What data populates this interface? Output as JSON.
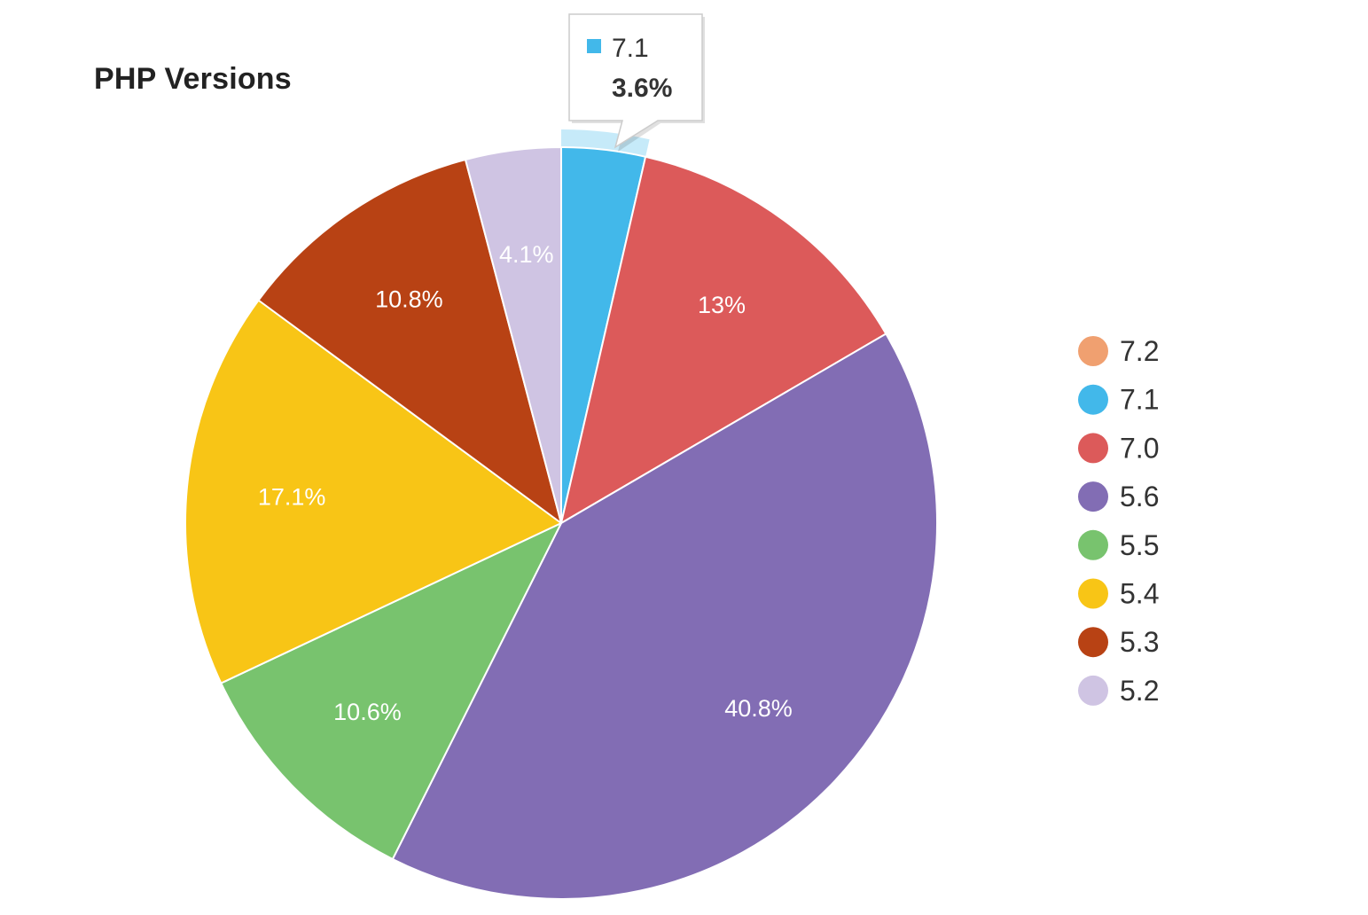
{
  "chart_data": {
    "type": "pie",
    "title": "PHP Versions",
    "series": [
      {
        "name": "7.2",
        "value": 0,
        "label": "",
        "color": "#f0a070"
      },
      {
        "name": "7.1",
        "value": 3.6,
        "label": "",
        "color": "#42b8ea"
      },
      {
        "name": "7.0",
        "value": 13,
        "label": "13%",
        "color": "#dc5a5a"
      },
      {
        "name": "5.6",
        "value": 40.8,
        "label": "40.8%",
        "color": "#826db4"
      },
      {
        "name": "5.5",
        "value": 10.6,
        "label": "10.6%",
        "color": "#78c36e"
      },
      {
        "name": "5.4",
        "value": 17.1,
        "label": "17.1%",
        "color": "#f8c516"
      },
      {
        "name": "5.3",
        "value": 10.8,
        "label": "10.8%",
        "color": "#b84214"
      },
      {
        "name": "5.2",
        "value": 4.1,
        "label": "4.1%",
        "color": "#cfc4e3"
      }
    ],
    "legend_placement": "right",
    "tooltip": {
      "series": "7.1",
      "value": "3.6%",
      "color": "#42b8ea"
    }
  }
}
